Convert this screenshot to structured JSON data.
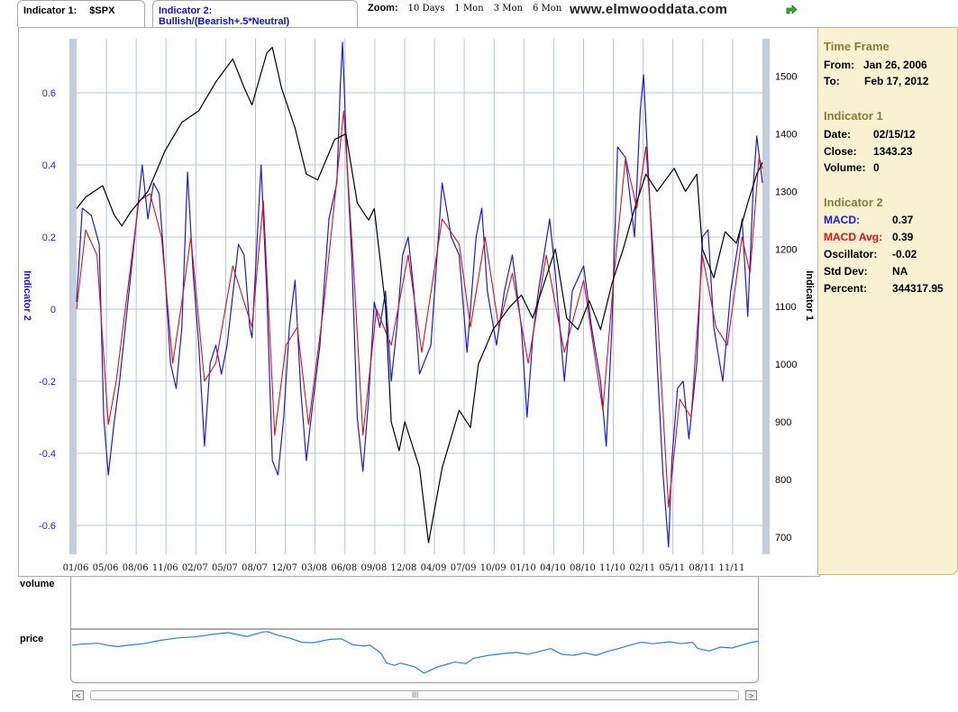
{
  "tabs": {
    "indicator1_label": "Indicator 1:",
    "indicator1_value": "$SPX",
    "indicator2_label": "Indicator 2:",
    "indicator2_value": "Bullish/(Bearish+.5*Neutral)"
  },
  "zoom": {
    "label": "Zoom:",
    "options": [
      "10 Days",
      "1 Mon",
      "3 Mon",
      "6 Mon"
    ]
  },
  "site": "www.elmwooddata.com",
  "icons": {
    "export": "green-arrow-icon"
  },
  "panel": {
    "timeframe_title": "Time Frame",
    "from_label": "From:",
    "from_value": "Jan 26, 2006",
    "to_label": "To:",
    "to_value": "Feb 17, 2012",
    "ind1_title": "Indicator 1",
    "date_label": "Date:",
    "date_value": "02/15/12",
    "close_label": "Close:",
    "close_value": "1343.23",
    "volume_label": "Volume:",
    "volume_value": "0",
    "ind2_title": "Indicator 2",
    "macd_label": "MACD:",
    "macd_value": "0.37",
    "macdavg_label": "MACD Avg:",
    "macdavg_value": "0.39",
    "osc_label": "Oscillator:",
    "osc_value": "-0.02",
    "std_label": "Std Dev:",
    "std_value": "NA",
    "pct_label": "Percent:",
    "pct_value": "344317.95"
  },
  "bottom": {
    "volume_label": "volume",
    "price_label": "price",
    "scroll_thumb": "||||"
  },
  "colors": {
    "macd": "#1a1adc",
    "macd_avg": "#dd1111",
    "spx": "#000000",
    "mini_price": "#2f7dd0",
    "panel_bg": "#f8f1d2",
    "panel_head": "#8b7a3a",
    "axis_bar": "#c3cfdd"
  },
  "chart_data": {
    "type": "line",
    "x_ticks": [
      "01/06",
      "05/06",
      "08/06",
      "11/06",
      "02/07",
      "05/07",
      "08/07",
      "12/07",
      "03/08",
      "06/08",
      "09/08",
      "12/08",
      "04/09",
      "07/09",
      "10/09",
      "01/10",
      "04/10",
      "08/10",
      "11/10",
      "02/11",
      "05/11",
      "08/11",
      "11/11"
    ],
    "xlim": [
      "2006-01-26",
      "2012-02-17"
    ],
    "left_axis": {
      "label": "Indicator 2",
      "ticks": [
        "0.6",
        "0.4",
        "0.2",
        "0",
        "-0.2",
        "-0.4",
        "-0.6"
      ],
      "ylim": [
        -0.68,
        0.75
      ]
    },
    "right_axis": {
      "label": "Indicator 1",
      "ticks": [
        "1500",
        "1400",
        "1300",
        "1200",
        "1100",
        "1000",
        "900",
        "800",
        "700"
      ],
      "ylim": [
        670,
        1565
      ]
    },
    "series": [
      {
        "name": "MACD",
        "axis": "left",
        "values": [
          [
            2006.07,
            0.02
          ],
          [
            2006.12,
            0.28
          ],
          [
            2006.2,
            0.26
          ],
          [
            2006.27,
            0.18
          ],
          [
            2006.31,
            -0.3
          ],
          [
            2006.35,
            -0.46
          ],
          [
            2006.4,
            -0.32
          ],
          [
            2006.45,
            -0.2
          ],
          [
            2006.5,
            -0.05
          ],
          [
            2006.55,
            0.1
          ],
          [
            2006.6,
            0.25
          ],
          [
            2006.65,
            0.4
          ],
          [
            2006.7,
            0.25
          ],
          [
            2006.75,
            0.35
          ],
          [
            2006.8,
            0.32
          ],
          [
            2006.85,
            0.1
          ],
          [
            2006.9,
            -0.15
          ],
          [
            2006.95,
            -0.22
          ],
          [
            2007.0,
            -0.05
          ],
          [
            2007.05,
            0.38
          ],
          [
            2007.1,
            0.1
          ],
          [
            2007.15,
            -0.1
          ],
          [
            2007.2,
            -0.38
          ],
          [
            2007.25,
            -0.15
          ],
          [
            2007.3,
            -0.1
          ],
          [
            2007.35,
            -0.18
          ],
          [
            2007.4,
            -0.1
          ],
          [
            2007.5,
            0.18
          ],
          [
            2007.55,
            0.15
          ],
          [
            2007.6,
            -0.05
          ],
          [
            2007.62,
            -0.08
          ],
          [
            2007.7,
            0.4
          ],
          [
            2007.75,
            0.05
          ],
          [
            2007.8,
            -0.42
          ],
          [
            2007.85,
            -0.46
          ],
          [
            2007.9,
            -0.3
          ],
          [
            2007.95,
            -0.05
          ],
          [
            2008.0,
            0.08
          ],
          [
            2008.05,
            -0.22
          ],
          [
            2008.1,
            -0.42
          ],
          [
            2008.15,
            -0.28
          ],
          [
            2008.22,
            -0.1
          ],
          [
            2008.3,
            0.25
          ],
          [
            2008.37,
            0.35
          ],
          [
            2008.4,
            0.62
          ],
          [
            2008.42,
            0.74
          ],
          [
            2008.46,
            0.4
          ],
          [
            2008.5,
            0.15
          ],
          [
            2008.55,
            -0.3
          ],
          [
            2008.6,
            -0.45
          ],
          [
            2008.65,
            -0.25
          ],
          [
            2008.7,
            0.02
          ],
          [
            2008.75,
            -0.05
          ],
          [
            2008.8,
            0.05
          ],
          [
            2008.85,
            -0.2
          ],
          [
            2008.9,
            -0.05
          ],
          [
            2008.95,
            0.15
          ],
          [
            2009.0,
            0.2
          ],
          [
            2009.05,
            0.05
          ],
          [
            2009.1,
            -0.18
          ],
          [
            2009.2,
            -0.1
          ],
          [
            2009.3,
            0.35
          ],
          [
            2009.38,
            0.2
          ],
          [
            2009.45,
            0.15
          ],
          [
            2009.52,
            -0.12
          ],
          [
            2009.6,
            0.2
          ],
          [
            2009.65,
            0.28
          ],
          [
            2009.7,
            0.05
          ],
          [
            2009.78,
            -0.1
          ],
          [
            2009.85,
            0.05
          ],
          [
            2009.92,
            0.15
          ],
          [
            2010.0,
            -0.05
          ],
          [
            2010.05,
            -0.3
          ],
          [
            2010.1,
            -0.08
          ],
          [
            2010.15,
            0.05
          ],
          [
            2010.2,
            0.15
          ],
          [
            2010.25,
            0.25
          ],
          [
            2010.3,
            0.1
          ],
          [
            2010.38,
            -0.2
          ],
          [
            2010.45,
            0.05
          ],
          [
            2010.55,
            0.12
          ],
          [
            2010.62,
            -0.05
          ],
          [
            2010.7,
            -0.2
          ],
          [
            2010.75,
            -0.38
          ],
          [
            2010.8,
            -0.05
          ],
          [
            2010.85,
            0.45
          ],
          [
            2010.92,
            0.42
          ],
          [
            2011.0,
            0.2
          ],
          [
            2011.05,
            0.55
          ],
          [
            2011.08,
            0.65
          ],
          [
            2011.15,
            0.2
          ],
          [
            2011.2,
            -0.15
          ],
          [
            2011.25,
            -0.45
          ],
          [
            2011.3,
            -0.66
          ],
          [
            2011.33,
            -0.42
          ],
          [
            2011.38,
            -0.22
          ],
          [
            2011.43,
            -0.2
          ],
          [
            2011.48,
            -0.36
          ],
          [
            2011.55,
            -0.15
          ],
          [
            2011.6,
            0.2
          ],
          [
            2011.65,
            0.22
          ],
          [
            2011.7,
            -0.05
          ],
          [
            2011.78,
            -0.2
          ],
          [
            2011.85,
            0.05
          ],
          [
            2011.95,
            0.25
          ],
          [
            2012.0,
            -0.02
          ],
          [
            2012.05,
            0.35
          ],
          [
            2012.08,
            0.48
          ],
          [
            2012.13,
            0.35
          ]
        ]
      },
      {
        "name": "MACD Avg",
        "axis": "left",
        "values": [
          [
            2006.07,
            0.0
          ],
          [
            2006.15,
            0.22
          ],
          [
            2006.25,
            0.15
          ],
          [
            2006.35,
            -0.32
          ],
          [
            2006.42,
            -0.2
          ],
          [
            2006.52,
            0.05
          ],
          [
            2006.62,
            0.3
          ],
          [
            2006.72,
            0.32
          ],
          [
            2006.82,
            0.2
          ],
          [
            2006.92,
            -0.15
          ],
          [
            2007.0,
            0.02
          ],
          [
            2007.08,
            0.2
          ],
          [
            2007.2,
            -0.2
          ],
          [
            2007.3,
            -0.15
          ],
          [
            2007.45,
            0.12
          ],
          [
            2007.62,
            -0.05
          ],
          [
            2007.72,
            0.3
          ],
          [
            2007.82,
            -0.35
          ],
          [
            2007.92,
            -0.1
          ],
          [
            2008.02,
            -0.05
          ],
          [
            2008.12,
            -0.32
          ],
          [
            2008.25,
            0.0
          ],
          [
            2008.35,
            0.3
          ],
          [
            2008.43,
            0.55
          ],
          [
            2008.52,
            0.1
          ],
          [
            2008.6,
            -0.35
          ],
          [
            2008.72,
            0.0
          ],
          [
            2008.85,
            -0.1
          ],
          [
            2009.0,
            0.15
          ],
          [
            2009.12,
            -0.12
          ],
          [
            2009.3,
            0.25
          ],
          [
            2009.45,
            0.18
          ],
          [
            2009.55,
            -0.05
          ],
          [
            2009.68,
            0.2
          ],
          [
            2009.8,
            -0.05
          ],
          [
            2009.92,
            0.1
          ],
          [
            2010.06,
            -0.15
          ],
          [
            2010.22,
            0.15
          ],
          [
            2010.38,
            -0.12
          ],
          [
            2010.55,
            0.08
          ],
          [
            2010.72,
            -0.28
          ],
          [
            2010.82,
            0.1
          ],
          [
            2010.92,
            0.42
          ],
          [
            2011.02,
            0.28
          ],
          [
            2011.1,
            0.45
          ],
          [
            2011.2,
            0.0
          ],
          [
            2011.3,
            -0.55
          ],
          [
            2011.4,
            -0.25
          ],
          [
            2011.5,
            -0.3
          ],
          [
            2011.6,
            0.15
          ],
          [
            2011.72,
            -0.05
          ],
          [
            2011.82,
            -0.1
          ],
          [
            2011.95,
            0.2
          ],
          [
            2012.02,
            0.1
          ],
          [
            2012.1,
            0.42
          ],
          [
            2012.13,
            0.39
          ]
        ]
      },
      {
        "name": "$SPX",
        "axis": "right",
        "values": [
          [
            2006.07,
            1270
          ],
          [
            2006.15,
            1290
          ],
          [
            2006.3,
            1310
          ],
          [
            2006.4,
            1260
          ],
          [
            2006.47,
            1240
          ],
          [
            2006.55,
            1265
          ],
          [
            2006.7,
            1300
          ],
          [
            2006.85,
            1370
          ],
          [
            2007.0,
            1420
          ],
          [
            2007.15,
            1440
          ],
          [
            2007.3,
            1490
          ],
          [
            2007.45,
            1530
          ],
          [
            2007.55,
            1480
          ],
          [
            2007.62,
            1450
          ],
          [
            2007.75,
            1540
          ],
          [
            2007.8,
            1550
          ],
          [
            2007.88,
            1480
          ],
          [
            2008.0,
            1410
          ],
          [
            2008.1,
            1330
          ],
          [
            2008.2,
            1320
          ],
          [
            2008.35,
            1390
          ],
          [
            2008.45,
            1400
          ],
          [
            2008.55,
            1280
          ],
          [
            2008.65,
            1250
          ],
          [
            2008.7,
            1270
          ],
          [
            2008.8,
            1100
          ],
          [
            2008.85,
            900
          ],
          [
            2008.92,
            850
          ],
          [
            2008.97,
            900
          ],
          [
            2009.1,
            820
          ],
          [
            2009.18,
            690
          ],
          [
            2009.3,
            820
          ],
          [
            2009.45,
            920
          ],
          [
            2009.55,
            890
          ],
          [
            2009.62,
            1000
          ],
          [
            2009.75,
            1060
          ],
          [
            2009.9,
            1100
          ],
          [
            2010.0,
            1120
          ],
          [
            2010.1,
            1080
          ],
          [
            2010.3,
            1200
          ],
          [
            2010.4,
            1080
          ],
          [
            2010.5,
            1060
          ],
          [
            2010.6,
            1110
          ],
          [
            2010.7,
            1060
          ],
          [
            2010.8,
            1140
          ],
          [
            2010.9,
            1200
          ],
          [
            2011.0,
            1270
          ],
          [
            2011.1,
            1330
          ],
          [
            2011.2,
            1300
          ],
          [
            2011.35,
            1340
          ],
          [
            2011.45,
            1300
          ],
          [
            2011.55,
            1330
          ],
          [
            2011.6,
            1200
          ],
          [
            2011.7,
            1150
          ],
          [
            2011.8,
            1230
          ],
          [
            2011.9,
            1210
          ],
          [
            2012.0,
            1280
          ],
          [
            2012.08,
            1330
          ],
          [
            2012.13,
            1350
          ]
        ]
      }
    ]
  }
}
